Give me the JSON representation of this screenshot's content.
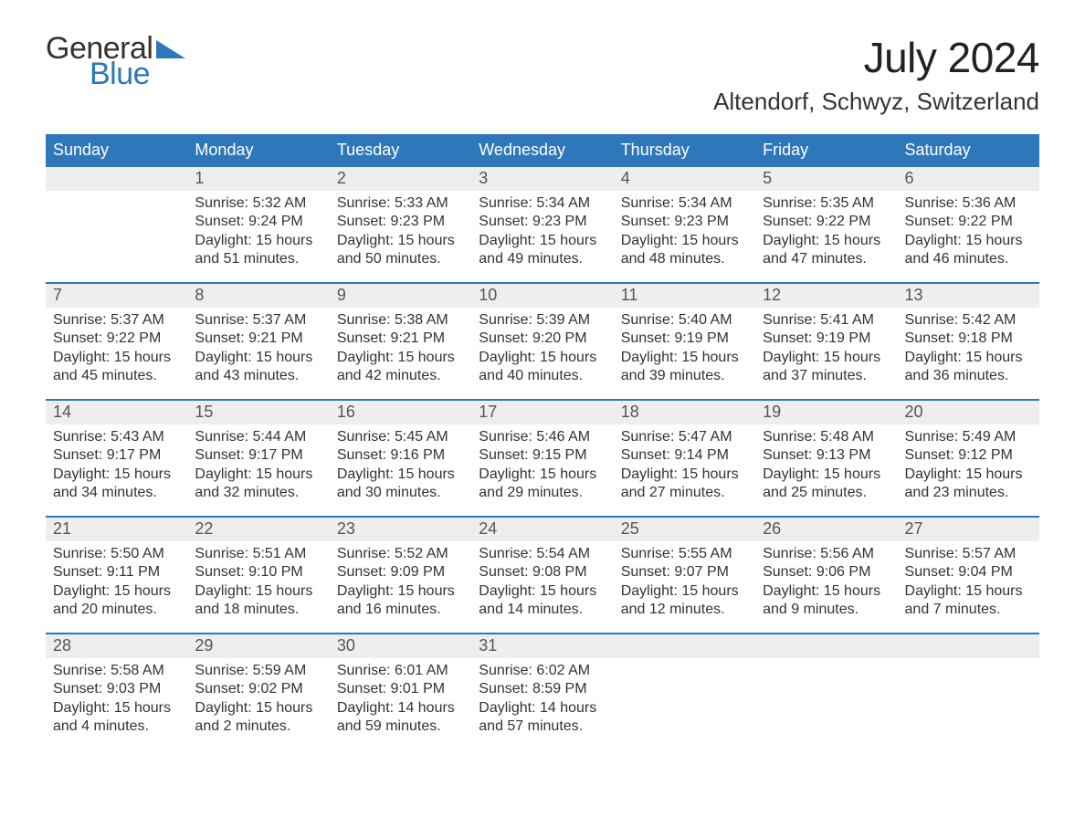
{
  "logo": {
    "word1": "General",
    "word2": "Blue",
    "triangle_fill": "#2e77bb"
  },
  "title": "July 2024",
  "location": "Altendorf, Schwyz, Switzerland",
  "colors": {
    "header_bg": "#2e77bb",
    "header_text": "#ffffff",
    "daynum_bg": "#eeeeee",
    "body_text": "#333333",
    "accent": "#2e77bb",
    "page_bg": "#ffffff"
  },
  "day_headers": [
    "Sunday",
    "Monday",
    "Tuesday",
    "Wednesday",
    "Thursday",
    "Friday",
    "Saturday"
  ],
  "labels": {
    "sunrise": "Sunrise:",
    "sunset": "Sunset:",
    "daylight": "Daylight:"
  },
  "weeks": [
    [
      {
        "n": "",
        "sunrise": "",
        "sunset": "",
        "daylight": ""
      },
      {
        "n": "1",
        "sunrise": "5:32 AM",
        "sunset": "9:24 PM",
        "daylight": "15 hours and 51 minutes."
      },
      {
        "n": "2",
        "sunrise": "5:33 AM",
        "sunset": "9:23 PM",
        "daylight": "15 hours and 50 minutes."
      },
      {
        "n": "3",
        "sunrise": "5:34 AM",
        "sunset": "9:23 PM",
        "daylight": "15 hours and 49 minutes."
      },
      {
        "n": "4",
        "sunrise": "5:34 AM",
        "sunset": "9:23 PM",
        "daylight": "15 hours and 48 minutes."
      },
      {
        "n": "5",
        "sunrise": "5:35 AM",
        "sunset": "9:22 PM",
        "daylight": "15 hours and 47 minutes."
      },
      {
        "n": "6",
        "sunrise": "5:36 AM",
        "sunset": "9:22 PM",
        "daylight": "15 hours and 46 minutes."
      }
    ],
    [
      {
        "n": "7",
        "sunrise": "5:37 AM",
        "sunset": "9:22 PM",
        "daylight": "15 hours and 45 minutes."
      },
      {
        "n": "8",
        "sunrise": "5:37 AM",
        "sunset": "9:21 PM",
        "daylight": "15 hours and 43 minutes."
      },
      {
        "n": "9",
        "sunrise": "5:38 AM",
        "sunset": "9:21 PM",
        "daylight": "15 hours and 42 minutes."
      },
      {
        "n": "10",
        "sunrise": "5:39 AM",
        "sunset": "9:20 PM",
        "daylight": "15 hours and 40 minutes."
      },
      {
        "n": "11",
        "sunrise": "5:40 AM",
        "sunset": "9:19 PM",
        "daylight": "15 hours and 39 minutes."
      },
      {
        "n": "12",
        "sunrise": "5:41 AM",
        "sunset": "9:19 PM",
        "daylight": "15 hours and 37 minutes."
      },
      {
        "n": "13",
        "sunrise": "5:42 AM",
        "sunset": "9:18 PM",
        "daylight": "15 hours and 36 minutes."
      }
    ],
    [
      {
        "n": "14",
        "sunrise": "5:43 AM",
        "sunset": "9:17 PM",
        "daylight": "15 hours and 34 minutes."
      },
      {
        "n": "15",
        "sunrise": "5:44 AM",
        "sunset": "9:17 PM",
        "daylight": "15 hours and 32 minutes."
      },
      {
        "n": "16",
        "sunrise": "5:45 AM",
        "sunset": "9:16 PM",
        "daylight": "15 hours and 30 minutes."
      },
      {
        "n": "17",
        "sunrise": "5:46 AM",
        "sunset": "9:15 PM",
        "daylight": "15 hours and 29 minutes."
      },
      {
        "n": "18",
        "sunrise": "5:47 AM",
        "sunset": "9:14 PM",
        "daylight": "15 hours and 27 minutes."
      },
      {
        "n": "19",
        "sunrise": "5:48 AM",
        "sunset": "9:13 PM",
        "daylight": "15 hours and 25 minutes."
      },
      {
        "n": "20",
        "sunrise": "5:49 AM",
        "sunset": "9:12 PM",
        "daylight": "15 hours and 23 minutes."
      }
    ],
    [
      {
        "n": "21",
        "sunrise": "5:50 AM",
        "sunset": "9:11 PM",
        "daylight": "15 hours and 20 minutes."
      },
      {
        "n": "22",
        "sunrise": "5:51 AM",
        "sunset": "9:10 PM",
        "daylight": "15 hours and 18 minutes."
      },
      {
        "n": "23",
        "sunrise": "5:52 AM",
        "sunset": "9:09 PM",
        "daylight": "15 hours and 16 minutes."
      },
      {
        "n": "24",
        "sunrise": "5:54 AM",
        "sunset": "9:08 PM",
        "daylight": "15 hours and 14 minutes."
      },
      {
        "n": "25",
        "sunrise": "5:55 AM",
        "sunset": "9:07 PM",
        "daylight": "15 hours and 12 minutes."
      },
      {
        "n": "26",
        "sunrise": "5:56 AM",
        "sunset": "9:06 PM",
        "daylight": "15 hours and 9 minutes."
      },
      {
        "n": "27",
        "sunrise": "5:57 AM",
        "sunset": "9:04 PM",
        "daylight": "15 hours and 7 minutes."
      }
    ],
    [
      {
        "n": "28",
        "sunrise": "5:58 AM",
        "sunset": "9:03 PM",
        "daylight": "15 hours and 4 minutes."
      },
      {
        "n": "29",
        "sunrise": "5:59 AM",
        "sunset": "9:02 PM",
        "daylight": "15 hours and 2 minutes."
      },
      {
        "n": "30",
        "sunrise": "6:01 AM",
        "sunset": "9:01 PM",
        "daylight": "14 hours and 59 minutes."
      },
      {
        "n": "31",
        "sunrise": "6:02 AM",
        "sunset": "8:59 PM",
        "daylight": "14 hours and 57 minutes."
      },
      {
        "n": "",
        "sunrise": "",
        "sunset": "",
        "daylight": ""
      },
      {
        "n": "",
        "sunrise": "",
        "sunset": "",
        "daylight": ""
      },
      {
        "n": "",
        "sunrise": "",
        "sunset": "",
        "daylight": ""
      }
    ]
  ]
}
